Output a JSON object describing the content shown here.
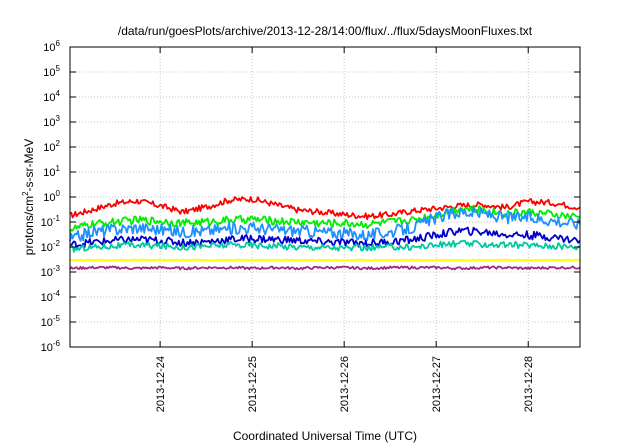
{
  "chart_data": {
    "type": "line",
    "title": "/data/run/goesPlots/archive/2013-12-28/14:00/flux/../flux/5daysMoonFluxes.txt",
    "xlabel": "Coordinated Universal Time (UTC)",
    "ylabel": {
      "prefix": "protons/cm",
      "sup": "2",
      "suffix": "-s-sr-MeV"
    },
    "yscale": "log",
    "ylim": [
      1e-06,
      1000000
    ],
    "xlim": [
      "2013-12-23T00:30",
      "2013-12-28T13:30"
    ],
    "grid": true,
    "legend": "none",
    "ytick_labels": [
      {
        "value": 1e-06,
        "base": "10",
        "exp": "-6"
      },
      {
        "value": 1e-05,
        "base": "10",
        "exp": "-5"
      },
      {
        "value": 0.0001,
        "base": "10",
        "exp": "-4"
      },
      {
        "value": 0.001,
        "base": "10",
        "exp": "-3"
      },
      {
        "value": 0.01,
        "base": "10",
        "exp": "-2"
      },
      {
        "value": 0.1,
        "base": "10",
        "exp": "-1"
      },
      {
        "value": 1,
        "base": "10",
        "exp": "0"
      },
      {
        "value": 10,
        "base": "10",
        "exp": "1"
      },
      {
        "value": 100,
        "base": "10",
        "exp": "2"
      },
      {
        "value": 1000,
        "base": "10",
        "exp": "3"
      },
      {
        "value": 10000,
        "base": "10",
        "exp": "4"
      },
      {
        "value": 100000,
        "base": "10",
        "exp": "5"
      },
      {
        "value": 1000000,
        "base": "10",
        "exp": "6"
      }
    ],
    "xtick_labels": [
      {
        "value": "2013-12-24T00:00",
        "label": "2013-12-24"
      },
      {
        "value": "2013-12-25T00:00",
        "label": "2013-12-25"
      },
      {
        "value": "2013-12-26T00:00",
        "label": "2013-12-26"
      },
      {
        "value": "2013-12-27T00:00",
        "label": "2013-12-27"
      },
      {
        "value": "2013-12-28T00:00",
        "label": "2013-12-28"
      }
    ],
    "x": [
      "2013-12-23T00:30",
      "2013-12-23T06:00",
      "2013-12-23T12:00",
      "2013-12-23T18:00",
      "2013-12-24T00:00",
      "2013-12-24T06:00",
      "2013-12-24T12:00",
      "2013-12-24T18:00",
      "2013-12-25T00:00",
      "2013-12-25T06:00",
      "2013-12-25T12:00",
      "2013-12-25T18:00",
      "2013-12-26T00:00",
      "2013-12-26T06:00",
      "2013-12-26T12:00",
      "2013-12-26T18:00",
      "2013-12-27T00:00",
      "2013-12-27T06:00",
      "2013-12-27T12:00",
      "2013-12-27T18:00",
      "2013-12-28T00:00",
      "2013-12-28T06:00",
      "2013-12-28T13:30"
    ],
    "series": [
      {
        "color": "#ff0000",
        "values": [
          0.18,
          0.3,
          0.55,
          0.7,
          0.45,
          0.25,
          0.4,
          0.75,
          0.85,
          0.5,
          0.3,
          0.25,
          0.2,
          0.17,
          0.2,
          0.28,
          0.35,
          0.45,
          0.5,
          0.38,
          0.65,
          0.6,
          0.38
        ]
      },
      {
        "color": "#00ee00",
        "values": [
          0.05,
          0.08,
          0.1,
          0.12,
          0.11,
          0.09,
          0.1,
          0.12,
          0.13,
          0.11,
          0.1,
          0.09,
          0.09,
          0.08,
          0.1,
          0.12,
          0.2,
          0.35,
          0.3,
          0.22,
          0.25,
          0.2,
          0.15
        ]
      },
      {
        "color": "#1e90ff",
        "values": [
          0.02,
          0.04,
          0.05,
          0.06,
          0.05,
          0.04,
          0.045,
          0.055,
          0.06,
          0.05,
          0.045,
          0.04,
          0.035,
          0.03,
          0.04,
          0.06,
          0.15,
          0.25,
          0.22,
          0.15,
          0.15,
          0.12,
          0.08
        ]
      },
      {
        "color": "#0000cd",
        "values": [
          0.012,
          0.015,
          0.018,
          0.02,
          0.018,
          0.015,
          0.016,
          0.02,
          0.022,
          0.02,
          0.018,
          0.016,
          0.015,
          0.014,
          0.016,
          0.02,
          0.03,
          0.045,
          0.04,
          0.032,
          0.03,
          0.025,
          0.018
        ]
      },
      {
        "color": "#00c8a0",
        "values": [
          0.008,
          0.01,
          0.011,
          0.012,
          0.011,
          0.01,
          0.011,
          0.012,
          0.012,
          0.011,
          0.01,
          0.01,
          0.009,
          0.009,
          0.01,
          0.01,
          0.012,
          0.014,
          0.013,
          0.012,
          0.012,
          0.011,
          0.01
        ]
      },
      {
        "color": "#ffff00",
        "values": [
          0.003,
          0.003,
          0.003,
          0.003,
          0.003,
          0.003,
          0.003,
          0.003,
          0.003,
          0.003,
          0.003,
          0.003,
          0.003,
          0.003,
          0.003,
          0.003,
          0.003,
          0.003,
          0.003,
          0.003,
          0.003,
          0.003,
          0.003
        ]
      },
      {
        "color": "#a02880",
        "values": [
          0.0014,
          0.0015,
          0.0015,
          0.0014,
          0.0015,
          0.0014,
          0.0015,
          0.0015,
          0.0014,
          0.0015,
          0.0014,
          0.0015,
          0.0015,
          0.0014,
          0.0015,
          0.0015,
          0.0015,
          0.0014,
          0.0015,
          0.0015,
          0.0014,
          0.0015,
          0.0015
        ]
      }
    ]
  }
}
